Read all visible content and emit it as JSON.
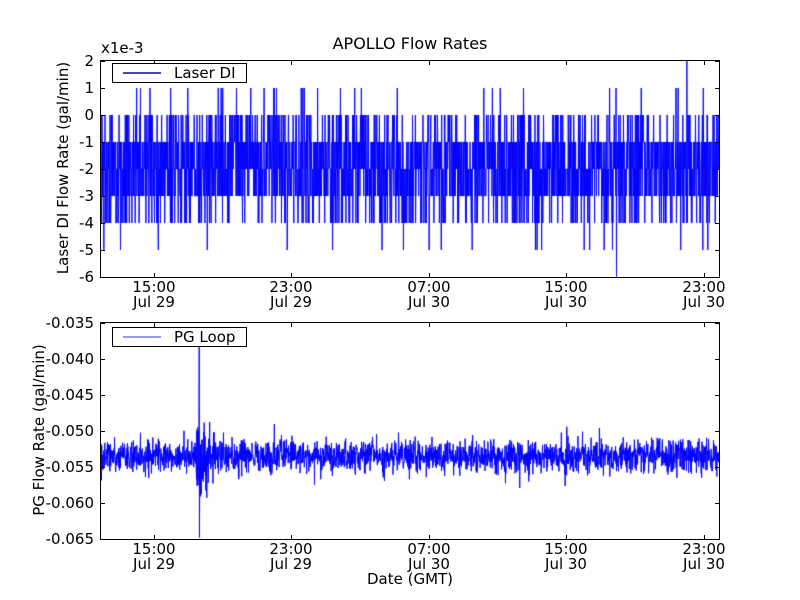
{
  "figure": {
    "title": "APOLLO Flow Rates",
    "xlabel": "Date (GMT)",
    "background": "#ffffff",
    "text_color": "#000000",
    "line_color": "#0000ff"
  },
  "xticks": [
    {
      "time": "15:00",
      "date": "Jul 29",
      "frac": 0.0855
    },
    {
      "time": "23:00",
      "date": "Jul 29",
      "frac": 0.3081
    },
    {
      "time": "07:00",
      "date": "Jul 30",
      "frac": 0.5306
    },
    {
      "time": "15:00",
      "date": "Jul 30",
      "frac": 0.7532
    },
    {
      "time": "23:00",
      "date": "Jul 30",
      "frac": 0.9758
    }
  ],
  "chart_data": [
    {
      "type": "line",
      "subplot": "top",
      "title": "APOLLO Flow Rates",
      "ylabel": "Laser DI Flow Rate (gal/min)",
      "offset_text": "x1e-3",
      "legend": "Laser DI",
      "legend_loc": "upper left",
      "legend_line_color": "#4444cc",
      "line_color": "#0000ff",
      "ylim": [
        -0.006,
        0.002
      ],
      "yticks_scaled": [
        2,
        1,
        0,
        -1,
        -2,
        -3,
        -4,
        -5,
        -6
      ],
      "ytick_labels": [
        "2",
        "1",
        "0",
        "-1",
        "-2",
        "-3",
        "-4",
        "-5",
        "-6"
      ],
      "x_range_note": "Jul 29 ~12:00 GMT to Jul 31 ~00:00 GMT",
      "grid": false,
      "signal": {
        "kind": "quantized_telegraph",
        "unit": 0.001,
        "levels": [
          1,
          0,
          -1,
          -2,
          -3,
          -4,
          -5
        ],
        "weights": [
          0.013,
          0.1,
          0.27,
          0.3,
          0.22,
          0.085,
          0.007
        ],
        "n_samples": 2600,
        "outliers": [
          {
            "frac": 0.948,
            "level": 2
          },
          {
            "frac": 0.834,
            "level": -6
          }
        ],
        "seed": 1234
      }
    },
    {
      "type": "line",
      "subplot": "bottom",
      "ylabel": "PG Flow Rate (gal/min)",
      "xlabel": "Date (GMT)",
      "legend": "PG Loop",
      "legend_loc": "upper left",
      "legend_line_color": "#9999ee",
      "line_color": "#0000ff",
      "ylim": [
        -0.065,
        -0.035
      ],
      "yticks": [
        -0.035,
        -0.04,
        -0.045,
        -0.05,
        -0.055,
        -0.06,
        -0.065
      ],
      "ytick_labels": [
        "-0.035",
        "-0.040",
        "-0.045",
        "-0.050",
        "-0.055",
        "-0.060",
        "-0.065"
      ],
      "grid": false,
      "signal": {
        "kind": "noisy_baseline",
        "baseline": -0.0535,
        "sigma": 0.0011,
        "tail_prob": 0.03,
        "tail_gain": 1.8,
        "clip_normal": [
          -0.0585,
          -0.0478
        ],
        "n_samples": 2600,
        "burst": {
          "start_frac": 0.154,
          "end_frac": 0.22,
          "sigma": 0.0045,
          "decay": 2.5,
          "peak_frac": 0.159,
          "peak_high": -0.0378,
          "peak_low": -0.0648
        },
        "seed": 99
      }
    }
  ]
}
